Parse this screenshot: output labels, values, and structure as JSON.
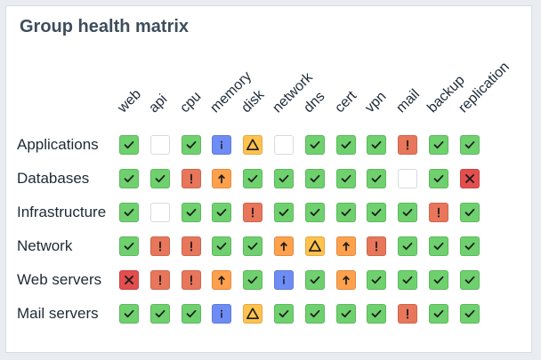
{
  "title": "Group health matrix",
  "columns": [
    "web",
    "api",
    "cpu",
    "memory",
    "disk",
    "network",
    "dns",
    "cert",
    "vpn",
    "mail",
    "backup",
    "replication"
  ],
  "rows": [
    {
      "label": "Applications",
      "cells": [
        "ok",
        "empty",
        "ok",
        "info",
        "alert",
        "empty",
        "ok",
        "ok",
        "ok",
        "error",
        "ok",
        "ok"
      ]
    },
    {
      "label": "Databases",
      "cells": [
        "ok",
        "ok",
        "error",
        "warn",
        "ok",
        "ok",
        "ok",
        "ok",
        "ok",
        "empty",
        "ok",
        "critical"
      ]
    },
    {
      "label": "Infrastructure",
      "cells": [
        "ok",
        "empty",
        "ok",
        "ok",
        "error",
        "ok",
        "ok",
        "ok",
        "ok",
        "ok",
        "error",
        "ok"
      ]
    },
    {
      "label": "Network",
      "cells": [
        "ok",
        "error",
        "error",
        "ok",
        "ok",
        "warn",
        "alert",
        "warn",
        "error",
        "ok",
        "ok",
        "ok"
      ]
    },
    {
      "label": "Web servers",
      "cells": [
        "critical",
        "error",
        "error",
        "warn",
        "ok",
        "info",
        "ok",
        "warn",
        "ok",
        "ok",
        "ok",
        "ok"
      ]
    },
    {
      "label": "Mail servers",
      "cells": [
        "ok",
        "ok",
        "ok",
        "info",
        "alert",
        "ok",
        "ok",
        "ok",
        "ok",
        "error",
        "ok",
        "ok"
      ]
    }
  ],
  "status_styles": {
    "ok": {
      "color": "#6ed16e",
      "icon": "check-icon"
    },
    "warn": {
      "color": "#ffa04d",
      "icon": "up-arrow-icon"
    },
    "error": {
      "color": "#e8765a",
      "icon": "exclamation-icon"
    },
    "critical": {
      "color": "#e34e4e",
      "icon": "x-icon"
    },
    "info": {
      "color": "#6e8cf5",
      "icon": "info-icon"
    },
    "alert": {
      "color": "#ffc24d",
      "icon": "triangle-warning-icon"
    },
    "empty": {
      "color": "#ffffff",
      "icon": "none"
    }
  }
}
